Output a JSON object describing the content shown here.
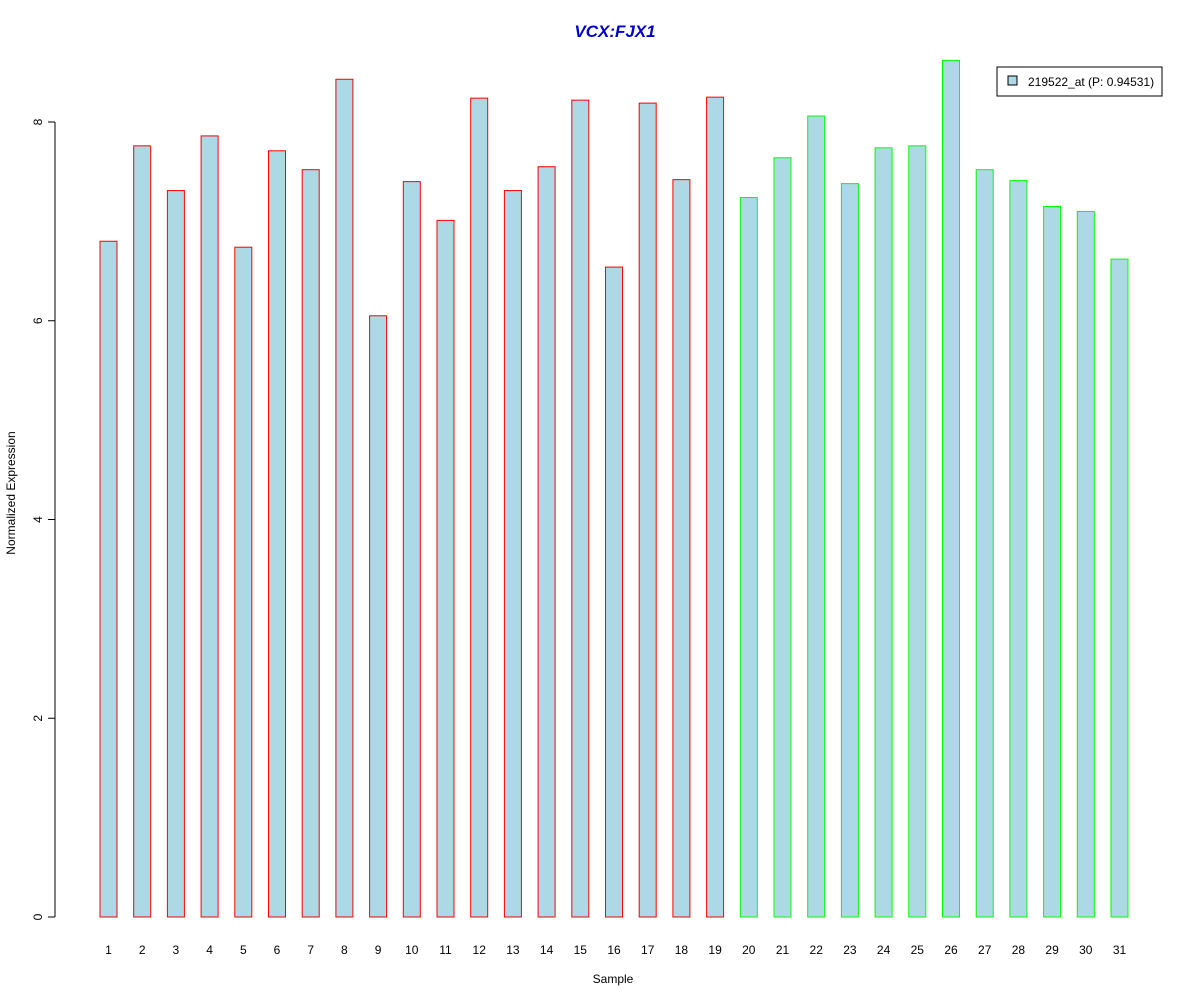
{
  "chart_data": {
    "type": "bar",
    "title": "VCX:FJX1",
    "xlabel": "Sample",
    "ylabel": "Normalized Expression",
    "categories": [
      "1",
      "2",
      "3",
      "4",
      "5",
      "6",
      "7",
      "8",
      "9",
      "10",
      "11",
      "12",
      "13",
      "14",
      "15",
      "16",
      "17",
      "18",
      "19",
      "20",
      "21",
      "22",
      "23",
      "24",
      "25",
      "26",
      "27",
      "28",
      "29",
      "30",
      "31"
    ],
    "series": [
      {
        "name": "219522_at (P: 0.94531)",
        "values": [
          6.8,
          7.76,
          7.31,
          7.86,
          6.74,
          7.71,
          7.52,
          8.43,
          6.05,
          7.4,
          7.01,
          8.24,
          7.31,
          7.55,
          8.22,
          6.54,
          8.19,
          7.42,
          8.25,
          7.24,
          7.64,
          8.06,
          7.38,
          7.74,
          7.76,
          8.62,
          7.52,
          7.41,
          7.15,
          7.1,
          6.62
        ]
      }
    ],
    "groups": [
      {
        "from": 1,
        "to": 19,
        "border_color": "#ff0000"
      },
      {
        "from": 20,
        "to": 31,
        "border_color": "#00ff00"
      }
    ],
    "bar_fill": "#add8e6",
    "title_color": "#0000cd",
    "yticks": [
      0,
      2,
      4,
      6,
      8
    ],
    "ylim": [
      0,
      8.7
    ],
    "legend_position": "top-right",
    "grid": false
  }
}
